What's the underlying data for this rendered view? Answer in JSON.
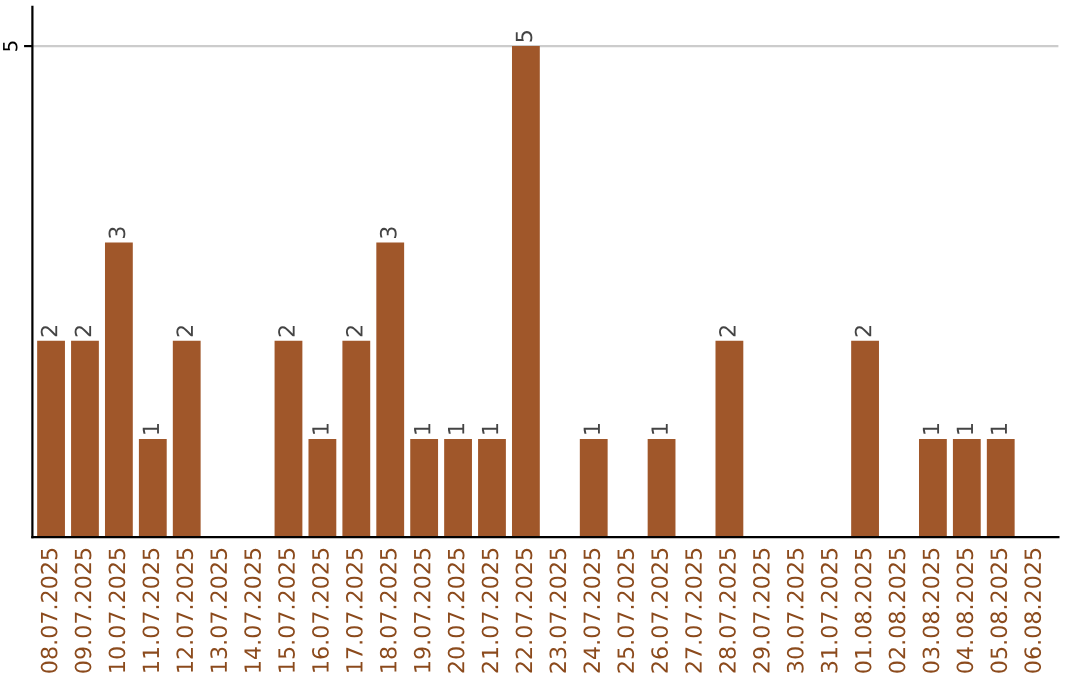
{
  "chart_data": {
    "type": "bar",
    "categories": [
      "08.07.2025",
      "09.07.2025",
      "10.07.2025",
      "11.07.2025",
      "12.07.2025",
      "13.07.2025",
      "14.07.2025",
      "15.07.2025",
      "16.07.2025",
      "17.07.2025",
      "18.07.2025",
      "19.07.2025",
      "20.07.2025",
      "21.07.2025",
      "22.07.2025",
      "23.07.2025",
      "24.07.2025",
      "25.07.2025",
      "26.07.2025",
      "27.07.2025",
      "28.07.2025",
      "29.07.2025",
      "30.07.2025",
      "31.07.2025",
      "01.08.2025",
      "02.08.2025",
      "03.08.2025",
      "04.08.2025",
      "05.08.2025",
      "06.08.2025"
    ],
    "values": [
      2,
      2,
      3,
      1,
      2,
      0,
      0,
      2,
      1,
      2,
      3,
      1,
      1,
      1,
      5,
      0,
      1,
      0,
      1,
      0,
      2,
      0,
      0,
      0,
      2,
      0,
      1,
      1,
      1,
      0
    ],
    "value_labels": [
      "2",
      "2",
      "3",
      "1",
      "2",
      null,
      null,
      "2",
      "1",
      "2",
      "3",
      "1",
      "1",
      "1",
      "5",
      null,
      "1",
      null,
      "1",
      null,
      "2",
      null,
      null,
      null,
      "2",
      null,
      "1",
      "1",
      "1",
      null
    ],
    "color": "#a0572a",
    "ylim": [
      0,
      5.4
    ],
    "yticks": [
      5
    ],
    "grid": "y"
  }
}
